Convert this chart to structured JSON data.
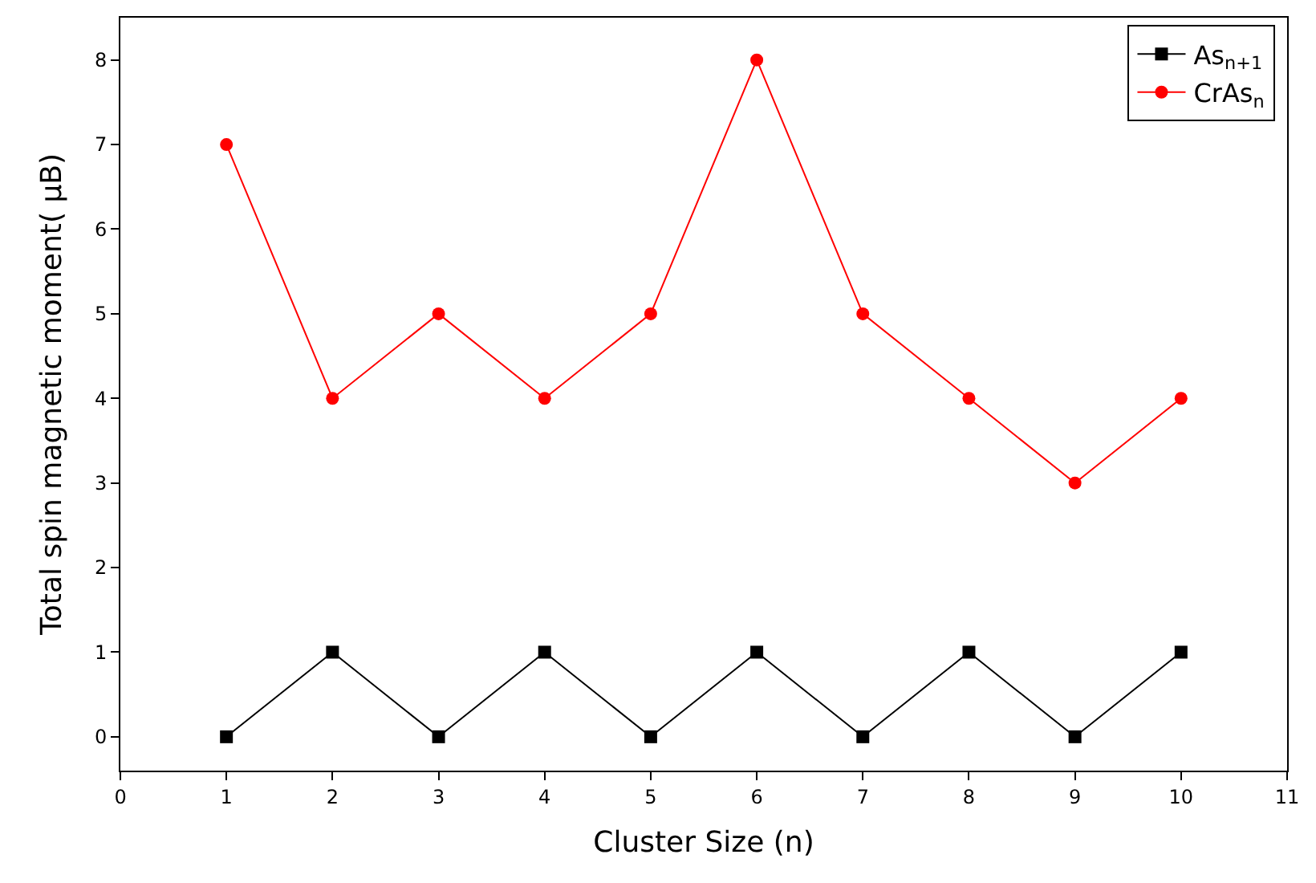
{
  "chart_data": {
    "type": "line",
    "xlabel": "Cluster Size (n)",
    "ylabel": "Total spin magnetic moment( μB)",
    "x": [
      1,
      2,
      3,
      4,
      5,
      6,
      7,
      8,
      9,
      10
    ],
    "series": [
      {
        "name": "As$_{n+1}$",
        "color": "#000000",
        "marker": "square",
        "values": [
          0,
          1,
          0,
          1,
          0,
          1,
          0,
          1,
          0,
          1
        ]
      },
      {
        "name": "CrAs$_{n}$",
        "color": "#ff0000",
        "marker": "circle",
        "values": [
          7,
          4,
          5,
          4,
          5,
          8,
          5,
          4,
          3,
          4
        ]
      }
    ],
    "xlim": [
      0,
      11
    ],
    "xticks": [
      0,
      1,
      2,
      3,
      4,
      5,
      6,
      7,
      8,
      9,
      10,
      11
    ],
    "ylim": [
      -0.4,
      8.5
    ],
    "yticks": [
      0,
      1,
      2,
      3,
      4,
      5,
      6,
      7,
      8
    ],
    "legend": "top right",
    "line_style": "solid"
  }
}
